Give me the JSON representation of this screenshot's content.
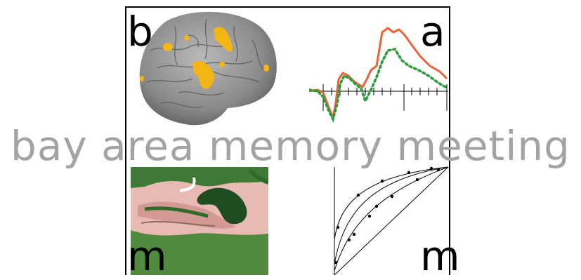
{
  "panels": {
    "top_left": {
      "letter": "b"
    },
    "top_right": {
      "letter": "a"
    },
    "bottom_left": {
      "letter": "m"
    },
    "bottom_right": {
      "letter": "m"
    }
  },
  "tagline": "bay area memory meeting",
  "colors": {
    "tagline": "#a3a3a3",
    "erp_solid": "#e8643a",
    "erp_dotted": "#2e9a3e",
    "activation": "#f4b614",
    "tissue_green": "#2f6b2a",
    "tissue_pink": "#e9b9b4"
  },
  "icons": [
    "brain-activation-image",
    "erp-waveform-graphic",
    "hippocampus-histology-image",
    "roc-curves-graphic"
  ]
}
